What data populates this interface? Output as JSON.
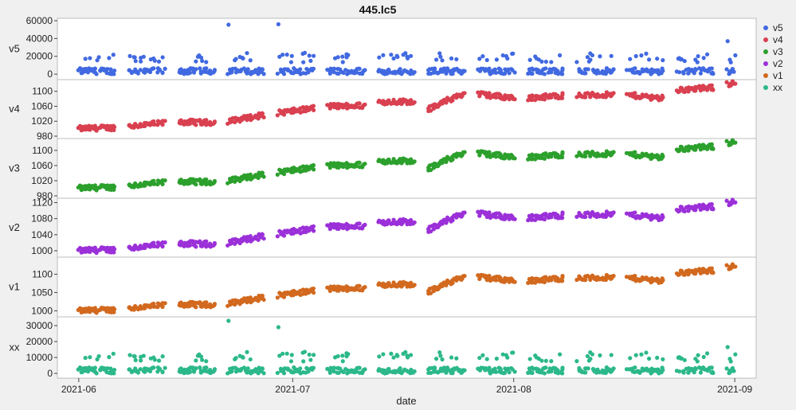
{
  "chart_data": {
    "type": "scatter",
    "title": "445.lc5",
    "xlabel": "date",
    "x_ticks": [
      "2021-06",
      "2021-07",
      "2021-08",
      "2021-09"
    ],
    "x_range": [
      "2021-05-29",
      "2021-09-04"
    ],
    "legend_position": "right",
    "legend": [
      "v5",
      "v4",
      "v3",
      "v2",
      "v1",
      "xx"
    ],
    "panels": [
      {
        "name": "v5",
        "ylabel": "v5",
        "color": "#4169e1",
        "ylim": [
          -3500,
          60000
        ],
        "yticks": [
          0,
          20000,
          40000,
          60000
        ],
        "tick_labels": [
          "0",
          "20000",
          "40000",
          "60000"
        ],
        "kind": "count",
        "points": [
          [
            "2021-06-22",
            55500
          ],
          [
            "2021-06-29",
            56000
          ],
          [
            "2021-08-31",
            37000
          ]
        ]
      },
      {
        "name": "v4",
        "ylabel": "v4",
        "color": "#d94050",
        "ylim": [
          980,
          1125
        ],
        "yticks": [
          980,
          1020,
          1060,
          1100
        ],
        "tick_labels": [
          "980",
          "1020",
          "1060",
          "1100"
        ],
        "kind": "level",
        "offset": 0
      },
      {
        "name": "v3",
        "ylabel": "v3",
        "color": "#2ca02c",
        "ylim": [
          980,
          1125
        ],
        "yticks": [
          980,
          1020,
          1060,
          1100
        ],
        "tick_labels": [
          "980",
          "1020",
          "1060",
          "1100"
        ],
        "kind": "level",
        "offset": 0
      },
      {
        "name": "v2",
        "ylabel": "v2",
        "color": "#9b30d9",
        "ylim": [
          990,
          1125
        ],
        "yticks": [
          1000,
          1040,
          1080,
          1120
        ],
        "tick_labels": [
          "1000",
          "1040",
          "1080",
          "1120"
        ],
        "kind": "level",
        "offset": 0
      },
      {
        "name": "v1",
        "ylabel": "v1",
        "color": "#d2691e",
        "ylim": [
          990,
          1140
        ],
        "yticks": [
          1000,
          1050,
          1100
        ],
        "tick_labels": [
          "1000",
          "1050",
          "1100"
        ],
        "kind": "level",
        "offset": 0
      },
      {
        "name": "xx",
        "ylabel": "xx",
        "color": "#2cb88a",
        "ylim": [
          -1500,
          34000
        ],
        "yticks": [
          0,
          10000,
          20000,
          30000
        ],
        "tick_labels": [
          "0",
          "10000",
          "20000",
          "30000"
        ],
        "kind": "count",
        "points": [
          [
            "2021-06-22",
            33000
          ],
          [
            "2021-06-29",
            29000
          ],
          [
            "2021-08-31",
            16500
          ]
        ]
      }
    ],
    "clusters": [
      {
        "start": "2021-06-01",
        "end": "2021-06-06",
        "level_start": 1000,
        "level_end": 1003
      },
      {
        "start": "2021-06-08",
        "end": "2021-06-13",
        "level_start": 1007,
        "level_end": 1015
      },
      {
        "start": "2021-06-15",
        "end": "2021-06-20",
        "level_start": 1018,
        "level_end": 1016
      },
      {
        "start": "2021-06-22",
        "end": "2021-06-27",
        "level_start": 1020,
        "level_end": 1037
      },
      {
        "start": "2021-06-29",
        "end": "2021-07-04",
        "level_start": 1042,
        "level_end": 1055
      },
      {
        "start": "2021-07-06",
        "end": "2021-07-11",
        "level_start": 1060,
        "level_end": 1062
      },
      {
        "start": "2021-07-13",
        "end": "2021-07-18",
        "level_start": 1072,
        "level_end": 1073
      },
      {
        "start": "2021-07-20",
        "end": "2021-07-25",
        "level_start": 1052,
        "level_end": 1095
      },
      {
        "start": "2021-07-27",
        "end": "2021-08-01",
        "level_start": 1093,
        "level_end": 1082
      },
      {
        "start": "2021-08-03",
        "end": "2021-08-08",
        "level_start": 1082,
        "level_end": 1089
      },
      {
        "start": "2021-08-10",
        "end": "2021-08-15",
        "level_start": 1089,
        "level_end": 1091
      },
      {
        "start": "2021-08-17",
        "end": "2021-08-22",
        "level_start": 1090,
        "level_end": 1082
      },
      {
        "start": "2021-08-24",
        "end": "2021-08-29",
        "level_start": 1103,
        "level_end": 1110
      },
      {
        "start": "2021-08-31",
        "end": "2021-09-01",
        "level_start": 1120,
        "level_end": 1122
      }
    ]
  }
}
